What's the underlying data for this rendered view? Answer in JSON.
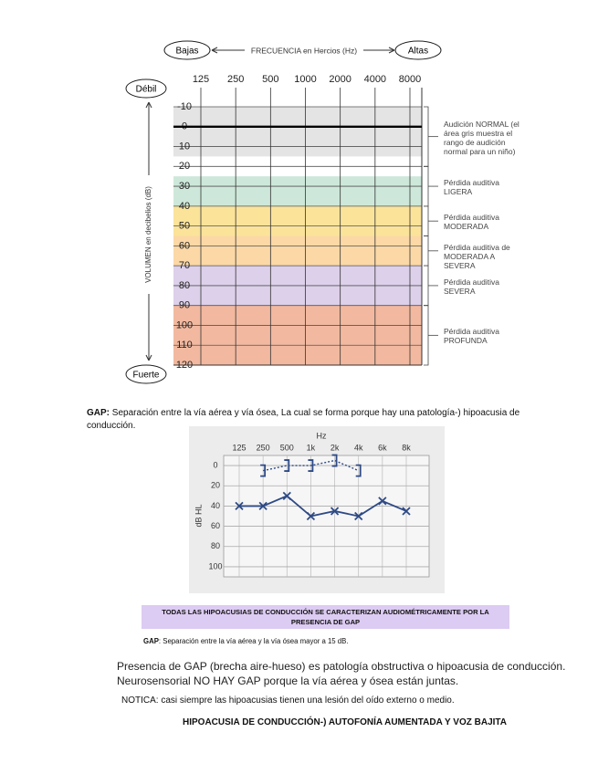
{
  "chart_data": [
    {
      "type": "band",
      "x_left_label": "Bajas",
      "x_label": "FRECUENCIA en Hercios (Hz)",
      "x_right_label": "Altas",
      "y_top_label": "Débil",
      "y_bottom_label": "Fuerte",
      "y_label": "VOLUMEN en decibelios (dB)",
      "categories": [
        "125",
        "250",
        "500",
        "1000",
        "2000",
        "4000",
        "8000"
      ],
      "ylim": [
        -10,
        120
      ],
      "y_inverted": true,
      "yticks": [
        -10,
        0,
        10,
        20,
        30,
        40,
        50,
        60,
        70,
        80,
        90,
        100,
        110,
        120
      ],
      "reference_line": 0,
      "bands": [
        {
          "from": -10,
          "to": 15,
          "color": "#e4e4e4"
        },
        {
          "from": 25,
          "to": 40,
          "color": "#cde8da"
        },
        {
          "from": 40,
          "to": 55,
          "color": "#fbe39a"
        },
        {
          "from": 55,
          "to": 70,
          "color": "#fbd8a6"
        },
        {
          "from": 70,
          "to": 90,
          "color": "#ddd0ea"
        },
        {
          "from": 90,
          "to": 120,
          "color": "#f2b9a0"
        }
      ],
      "ranges": [
        {
          "from": -10,
          "to": 20,
          "label": "Audición NORMAL (el área gris muestra el rango de audición normal para un niño)"
        },
        {
          "from": 20,
          "to": 40,
          "label": "Pérdida auditiva LIGERA"
        },
        {
          "from": 40,
          "to": 55,
          "label": "Pérdida auditiva MODERADA"
        },
        {
          "from": 55,
          "to": 70,
          "label": "Pérdida auditiva de MODERADA A SEVERA"
        },
        {
          "from": 70,
          "to": 90,
          "label": "Pérdida auditiva SEVERA"
        },
        {
          "from": 90,
          "to": 120,
          "label": "Pérdida auditiva PROFUNDA"
        }
      ]
    },
    {
      "type": "line",
      "title": "Hz",
      "y_label": "dB HL",
      "categories": [
        "125",
        "250",
        "500",
        "1k",
        "2k",
        "4k",
        "6k",
        "8k"
      ],
      "ylim": [
        -10,
        110
      ],
      "y_inverted": true,
      "yticks": [
        0,
        20,
        40,
        60,
        80,
        100
      ],
      "grid": true,
      "series": [
        {
          "color": "#2e4a86",
          "marker": "x",
          "line_style": "solid",
          "values": [
            40,
            40,
            30,
            50,
            45,
            50,
            35,
            45
          ]
        },
        {
          "color": "#2e4a86",
          "marker": "bracket",
          "line_style": "dotted",
          "values": [
            null,
            5,
            0,
            0,
            -5,
            5,
            null,
            null
          ]
        }
      ]
    }
  ],
  "document": {
    "gap_definition": {
      "term": "GAP:",
      "text": " Separación entre la vía aérea y vía ósea, La cual se forma porque hay una patología-) hipoacusia de conducción."
    },
    "highlight_box": "TODAS LAS HIPOACUSIAS DE CONDUCCIÓN SE CARACTERIZAN AUDIOMÉTRICAMENTE POR LA PRESENCIA DE GAP",
    "gap_note": {
      "term": "GAP",
      "text": ": Separación entre la vía aérea y la vía ósea mayor a 15 dB."
    },
    "paragraphs": [
      "Presencia de GAP (brecha aire-hueso) es patología obstructiva o hipoacusia de conducción.",
      "Neurosensorial NO HAY GAP porque la vía aérea y ósea están juntas."
    ],
    "note": "NOTICA: casi siempre las hipoacusias tienen una lesión del oído externo o medio.",
    "conclusion": "HIPOACUSIA DE CONDUCCIÓN-) AUTOFONÍA AUMENTADA Y VOZ BAJITA"
  }
}
